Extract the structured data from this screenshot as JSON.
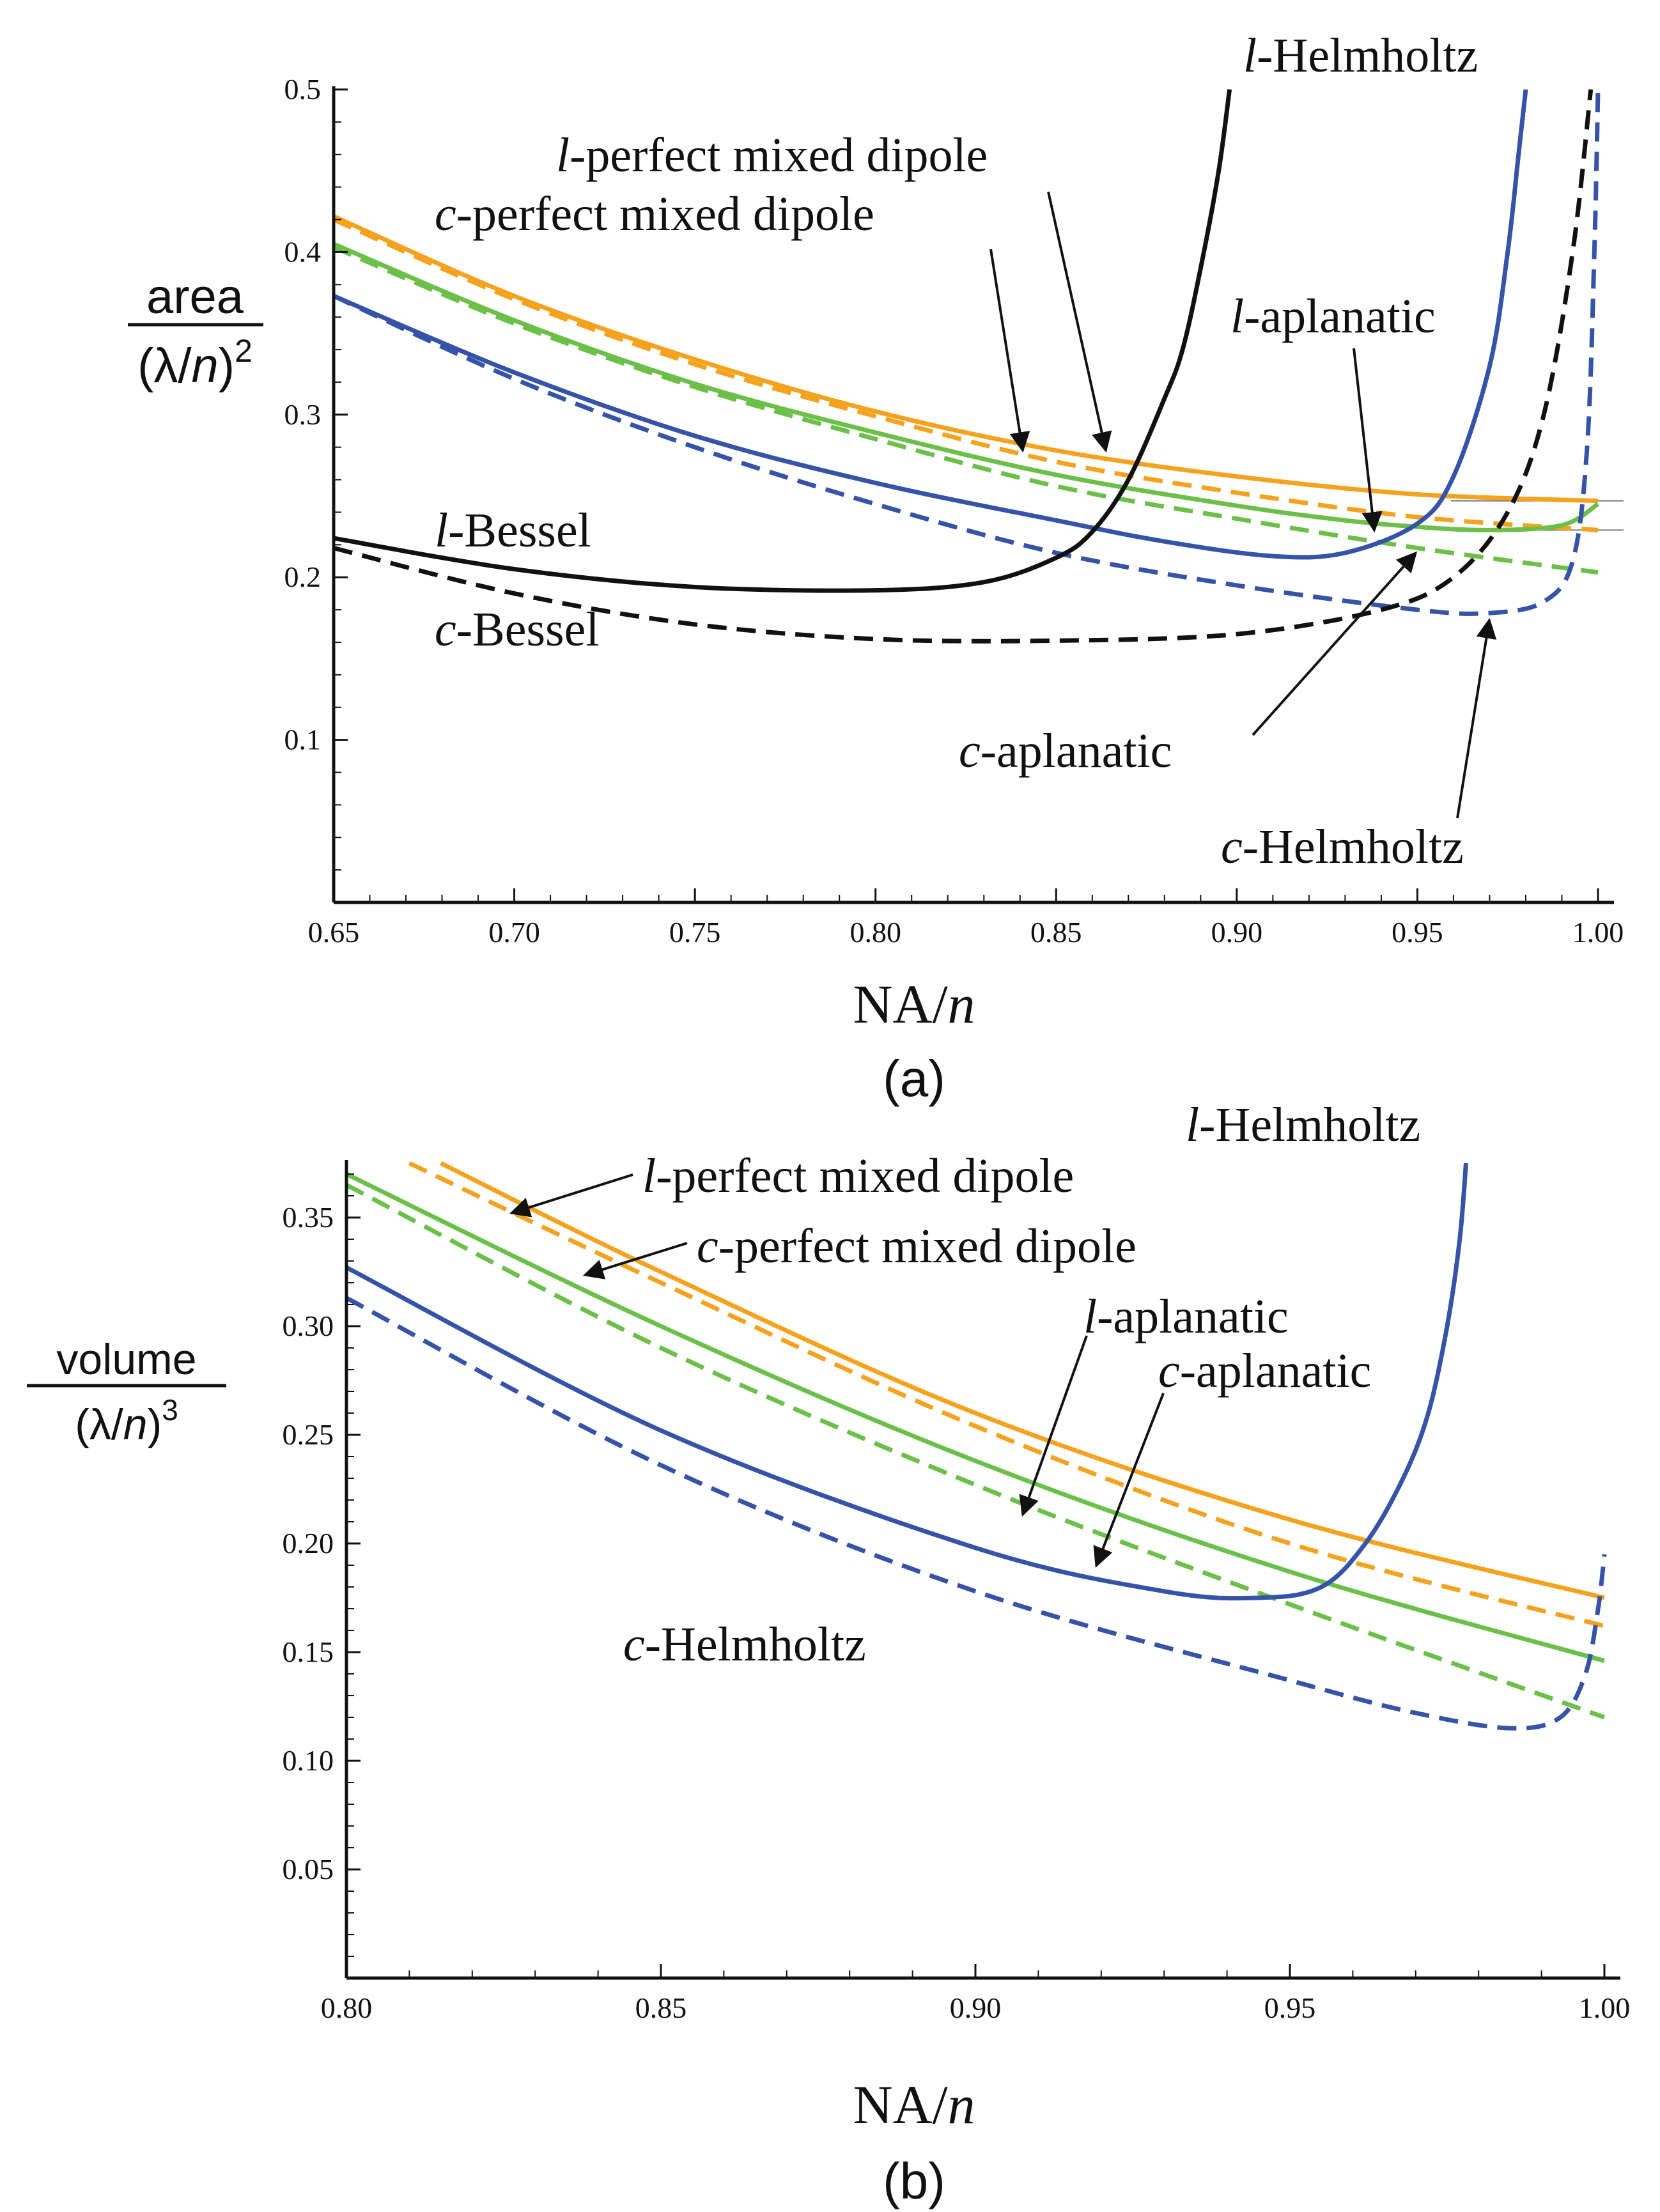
{
  "colors": {
    "orange": "#f5a21f",
    "green": "#6cc04a",
    "blue": "#3553a8",
    "black": "#111111"
  },
  "chart_data": [
    {
      "type": "line",
      "panel_label": "(a)",
      "ylabel_num": "area",
      "ylabel_den_pre": "(λ/",
      "ylabel_den_var": "n",
      "ylabel_den_post": ")",
      "ylabel_den_exp": "2",
      "xlabel_pre": "NA/",
      "xlabel_var": "n",
      "xlim": [
        0.65,
        1.0
      ],
      "ylim": [
        0,
        0.5
      ],
      "xticks": [
        "0.65",
        "0.70",
        "0.75",
        "0.80",
        "0.85",
        "0.90",
        "0.95",
        "1.00"
      ],
      "yticks": [
        "0.1",
        "0.2",
        "0.3",
        "0.4",
        "0.5"
      ],
      "ref_lines": [
        0.247,
        0.229
      ],
      "series": [
        {
          "name": "l-perfect mixed dipole",
          "color": "orange",
          "dash": false,
          "x": [
            0.65,
            0.7,
            0.75,
            0.8,
            0.85,
            0.9,
            0.95,
            1.0
          ],
          "y": [
            0.422,
            0.373,
            0.334,
            0.302,
            0.278,
            0.262,
            0.251,
            0.247
          ]
        },
        {
          "name": "c-perfect mixed dipole",
          "color": "orange",
          "dash": true,
          "x": [
            0.65,
            0.7,
            0.75,
            0.8,
            0.85,
            0.9,
            0.95,
            1.0
          ],
          "y": [
            0.42,
            0.371,
            0.331,
            0.299,
            0.271,
            0.252,
            0.237,
            0.229
          ]
        },
        {
          "name": "l-aplanatic",
          "color": "green",
          "dash": false,
          "x": [
            0.65,
            0.7,
            0.75,
            0.8,
            0.85,
            0.9,
            0.93,
            0.95,
            0.97,
            0.99,
            1.0
          ],
          "y": [
            0.405,
            0.358,
            0.319,
            0.289,
            0.263,
            0.244,
            0.235,
            0.231,
            0.229,
            0.232,
            0.245
          ]
        },
        {
          "name": "c-aplanatic",
          "color": "green",
          "dash": true,
          "x": [
            0.65,
            0.7,
            0.75,
            0.8,
            0.85,
            0.9,
            0.95,
            1.0
          ],
          "y": [
            0.403,
            0.356,
            0.317,
            0.285,
            0.256,
            0.236,
            0.218,
            0.203
          ]
        },
        {
          "name": "l-Helmholtz",
          "color": "blue",
          "dash": false,
          "x": [
            0.65,
            0.7,
            0.75,
            0.8,
            0.85,
            0.88,
            0.91,
            0.93,
            0.95,
            0.96,
            0.97,
            0.975,
            0.978,
            0.98
          ],
          "y": [
            0.373,
            0.326,
            0.287,
            0.258,
            0.235,
            0.222,
            0.213,
            0.215,
            0.233,
            0.262,
            0.33,
            0.4,
            0.46,
            0.5
          ]
        },
        {
          "name": "c-Helmholtz",
          "color": "blue",
          "dash": true,
          "x": [
            0.65,
            0.7,
            0.75,
            0.8,
            0.85,
            0.9,
            0.95,
            0.97,
            0.985,
            0.993,
            0.997,
            0.999,
            1.0
          ],
          "y": [
            0.373,
            0.322,
            0.28,
            0.245,
            0.215,
            0.195,
            0.18,
            0.178,
            0.185,
            0.21,
            0.28,
            0.4,
            0.5
          ]
        },
        {
          "name": "l-Bessel",
          "color": "black",
          "dash": false,
          "x": [
            0.65,
            0.7,
            0.75,
            0.8,
            0.83,
            0.85,
            0.86,
            0.87,
            0.88,
            0.885,
            0.89,
            0.895,
            0.898
          ],
          "y": [
            0.224,
            0.205,
            0.194,
            0.192,
            0.197,
            0.212,
            0.228,
            0.26,
            0.31,
            0.34,
            0.39,
            0.45,
            0.5
          ]
        },
        {
          "name": "c-Bessel",
          "color": "black",
          "dash": true,
          "x": [
            0.65,
            0.7,
            0.75,
            0.8,
            0.85,
            0.9,
            0.94,
            0.96,
            0.975,
            0.985,
            0.993,
            0.998
          ],
          "y": [
            0.218,
            0.19,
            0.171,
            0.162,
            0.161,
            0.165,
            0.18,
            0.2,
            0.24,
            0.3,
            0.4,
            0.5
          ]
        }
      ],
      "annotations": [
        {
          "italic": "l",
          "text": "-Helmholtz"
        },
        {
          "italic": "l",
          "text": "-perfect mixed dipole"
        },
        {
          "italic": "c",
          "text": "-perfect mixed dipole"
        },
        {
          "italic": "l",
          "text": "-aplanatic"
        },
        {
          "italic": "l",
          "text": "-Bessel"
        },
        {
          "italic": "c",
          "text": "-Bessel"
        },
        {
          "italic": "c",
          "text": "-aplanatic"
        },
        {
          "italic": "c",
          "text": "-Helmholtz"
        }
      ]
    },
    {
      "type": "line",
      "panel_label": "(b)",
      "ylabel_num": "volume",
      "ylabel_den_pre": "(λ/",
      "ylabel_den_var": "n",
      "ylabel_den_post": ")",
      "ylabel_den_exp": "3",
      "xlabel_pre": "NA/",
      "xlabel_var": "n",
      "xlim": [
        0.8,
        1.0
      ],
      "ylim": [
        0,
        0.375
      ],
      "xticks": [
        "0.80",
        "0.85",
        "0.90",
        "0.95",
        "1.00"
      ],
      "yticks": [
        "0.05",
        "0.10",
        "0.15",
        "0.20",
        "0.25",
        "0.30",
        "0.35"
      ],
      "series": [
        {
          "name": "l-perfect mixed dipole",
          "color": "orange",
          "dash": false,
          "x": [
            0.815,
            0.85,
            0.9,
            0.95,
            1.0
          ],
          "y": [
            0.375,
            0.325,
            0.26,
            0.211,
            0.175
          ]
        },
        {
          "name": "c-perfect mixed dipole",
          "color": "orange",
          "dash": true,
          "x": [
            0.81,
            0.85,
            0.9,
            0.95,
            1.0
          ],
          "y": [
            0.375,
            0.32,
            0.254,
            0.2,
            0.162
          ]
        },
        {
          "name": "l-aplanatic",
          "color": "green",
          "dash": false,
          "x": [
            0.8,
            0.85,
            0.9,
            0.95,
            1.0
          ],
          "y": [
            0.37,
            0.3,
            0.238,
            0.187,
            0.146
          ]
        },
        {
          "name": "c-aplanatic",
          "color": "green",
          "dash": true,
          "x": [
            0.8,
            0.85,
            0.9,
            0.95,
            1.0
          ],
          "y": [
            0.365,
            0.29,
            0.227,
            0.172,
            0.12
          ]
        },
        {
          "name": "l-Helmholtz",
          "color": "blue",
          "dash": false,
          "x": [
            0.8,
            0.85,
            0.9,
            0.93,
            0.945,
            0.955,
            0.962,
            0.968,
            0.972,
            0.975,
            0.977,
            0.978
          ],
          "y": [
            0.327,
            0.252,
            0.198,
            0.178,
            0.175,
            0.18,
            0.2,
            0.23,
            0.26,
            0.3,
            0.34,
            0.375
          ]
        },
        {
          "name": "c-Helmholtz",
          "color": "blue",
          "dash": true,
          "x": [
            0.8,
            0.85,
            0.9,
            0.95,
            0.97,
            0.985,
            0.993,
            0.997,
            0.999,
            1.0
          ],
          "y": [
            0.313,
            0.236,
            0.178,
            0.137,
            0.122,
            0.115,
            0.12,
            0.14,
            0.17,
            0.195
          ]
        }
      ],
      "annotations": [
        {
          "italic": "l",
          "text": "-Helmholtz"
        },
        {
          "italic": "l",
          "text": "-perfect mixed dipole"
        },
        {
          "italic": "c",
          "text": "-perfect mixed dipole"
        },
        {
          "italic": "l",
          "text": "-aplanatic"
        },
        {
          "italic": "c",
          "text": "-aplanatic"
        },
        {
          "italic": "c",
          "text": "-Helmholtz"
        }
      ]
    }
  ]
}
